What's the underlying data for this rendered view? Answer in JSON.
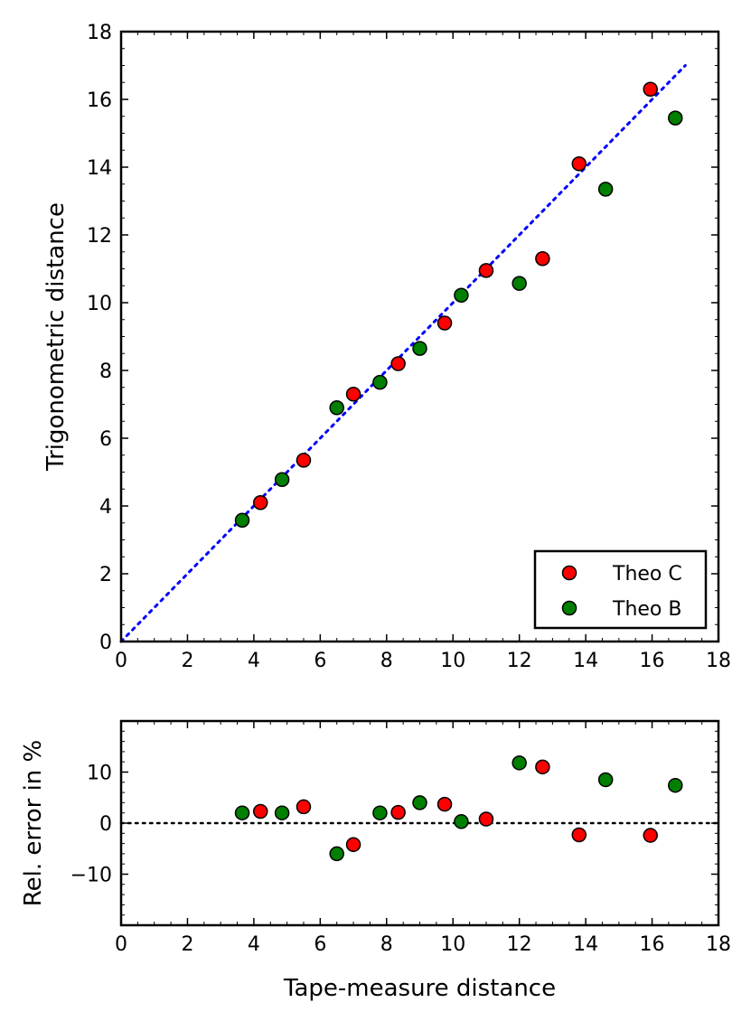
{
  "chart_data": [
    {
      "type": "scatter",
      "panel": "top",
      "title": "",
      "xlabel": "",
      "ylabel": "Trigonometric distance",
      "xlim": [
        0,
        18
      ],
      "ylim": [
        0,
        18
      ],
      "xticks": [
        "0",
        "2",
        "4",
        "6",
        "8",
        "10",
        "12",
        "14",
        "16",
        "18"
      ],
      "yticks": [
        "0",
        "2",
        "4",
        "6",
        "8",
        "10",
        "12",
        "14",
        "16",
        "18"
      ],
      "reference_line": {
        "style": "dotted",
        "color": "#0000ff",
        "x": [
          0,
          17
        ],
        "y": [
          0,
          17
        ]
      },
      "legend": {
        "location": "bottom-right",
        "entries": [
          "Theo C",
          "Theo B"
        ]
      },
      "series": [
        {
          "name": "Theo C",
          "color": "#ff0000",
          "points": [
            [
              4.2,
              4.1
            ],
            [
              5.5,
              5.35
            ],
            [
              7.0,
              7.3
            ],
            [
              8.35,
              8.2
            ],
            [
              9.75,
              9.4
            ],
            [
              11.0,
              10.95
            ],
            [
              12.7,
              11.3
            ],
            [
              13.8,
              14.1
            ],
            [
              15.95,
              16.3
            ]
          ]
        },
        {
          "name": "Theo B",
          "color": "#007f00",
          "points": [
            [
              3.65,
              3.58
            ],
            [
              4.85,
              4.78
            ],
            [
              6.5,
              6.9
            ],
            [
              7.8,
              7.65
            ],
            [
              9.0,
              8.65
            ],
            [
              10.25,
              10.22
            ],
            [
              12.0,
              10.57
            ],
            [
              14.6,
              13.35
            ],
            [
              16.7,
              15.45
            ]
          ]
        }
      ]
    },
    {
      "type": "scatter",
      "panel": "bottom",
      "title": "",
      "xlabel": "Tape-measure distance",
      "ylabel": "Rel. error in %",
      "xlim": [
        0,
        18
      ],
      "ylim": [
        -20,
        20
      ],
      "xticks": [
        "0",
        "2",
        "4",
        "6",
        "8",
        "10",
        "12",
        "14",
        "16",
        "18"
      ],
      "yticks": [
        "−10",
        "0",
        "10"
      ],
      "ytick_values": [
        -10,
        0,
        10
      ],
      "reference_line": {
        "style": "dotted",
        "color": "#000000",
        "y": 0
      },
      "series": [
        {
          "name": "Theo C",
          "color": "#ff0000",
          "points": [
            [
              4.2,
              2.3
            ],
            [
              5.5,
              3.2
            ],
            [
              7.0,
              -4.2
            ],
            [
              8.35,
              2.1
            ],
            [
              9.75,
              3.7
            ],
            [
              11.0,
              0.8
            ],
            [
              12.7,
              11.0
            ],
            [
              13.8,
              -2.3
            ],
            [
              15.95,
              -2.4
            ]
          ]
        },
        {
          "name": "Theo B",
          "color": "#007f00",
          "points": [
            [
              3.65,
              2.0
            ],
            [
              4.85,
              2.0
            ],
            [
              6.5,
              -6.0
            ],
            [
              7.8,
              2.0
            ],
            [
              9.0,
              4.0
            ],
            [
              10.25,
              0.3
            ],
            [
              12.0,
              11.8
            ],
            [
              14.6,
              8.5
            ],
            [
              16.7,
              7.4
            ]
          ]
        }
      ]
    }
  ]
}
